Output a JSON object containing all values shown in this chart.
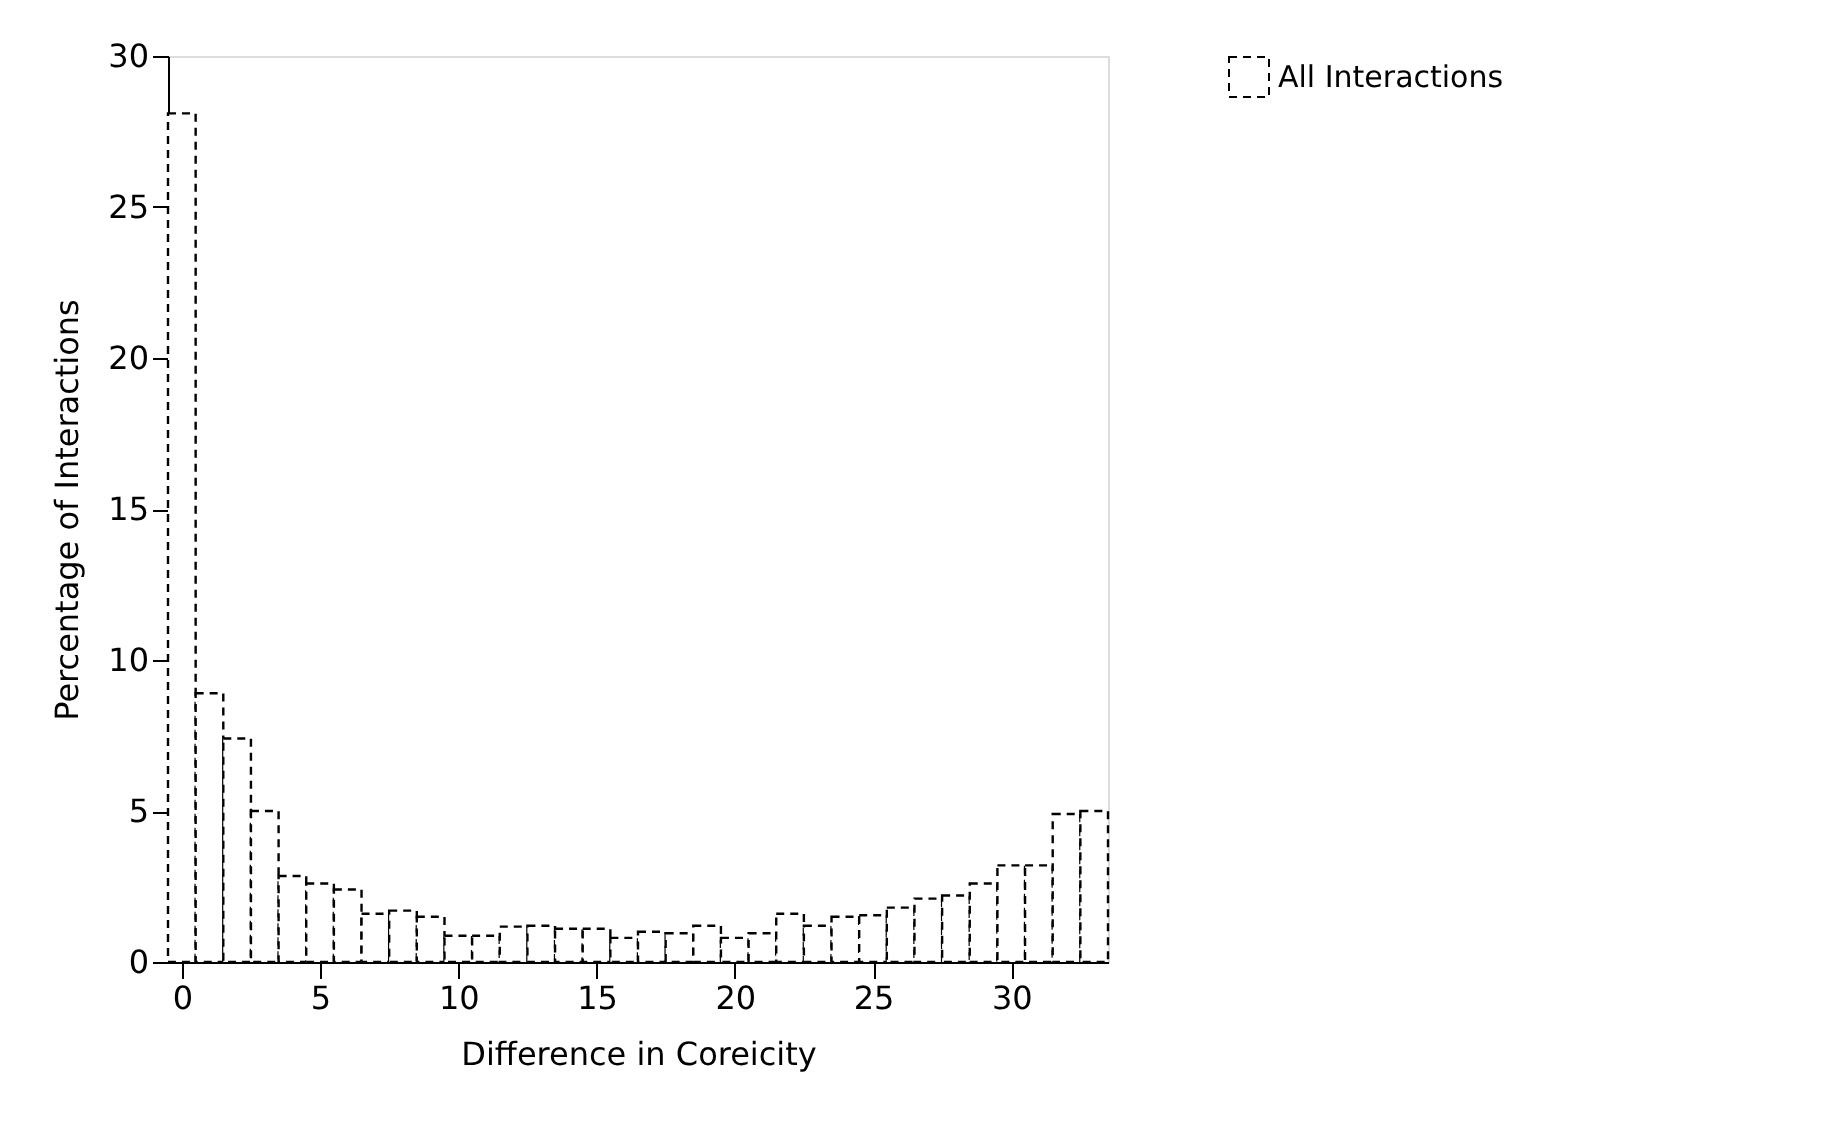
{
  "chart_data": {
    "type": "histogram",
    "xlabel": "Difference in Coreicity",
    "ylabel": "Percentage of Interactions",
    "bins": [
      -0.5,
      0.5,
      1.5,
      2.5,
      3.5,
      4.5,
      5.5,
      6.5,
      7.5,
      8.5,
      9.5,
      10.5,
      11.5,
      12.5,
      13.5,
      14.5,
      15.5,
      16.5,
      17.5,
      18.5,
      19.5,
      20.5,
      21.5,
      22.5,
      23.5,
      24.5,
      25.5,
      26.5,
      27.5,
      28.5,
      29.5,
      30.5,
      31.5,
      32.5,
      33.5
    ],
    "series": [
      {
        "name": "All Interactions",
        "color": "#000000",
        "line_style": "dashed",
        "values": [
          28.1,
          8.9,
          7.4,
          5.0,
          2.85,
          2.6,
          2.4,
          1.6,
          1.7,
          1.5,
          0.87,
          0.87,
          1.17,
          1.2,
          1.1,
          1.1,
          0.8,
          1.0,
          0.95,
          1.2,
          0.8,
          0.95,
          1.6,
          1.2,
          1.5,
          1.55,
          1.8,
          2.1,
          2.2,
          2.6,
          3.2,
          3.2,
          4.9,
          5.0
        ]
      }
    ],
    "xlim": [
      -0.5,
      33.5
    ],
    "xticks": [
      0,
      5,
      10,
      15,
      20,
      25,
      30
    ],
    "ylim": [
      0,
      30
    ],
    "yticks": [
      0,
      5,
      10,
      15,
      20,
      25,
      30
    ],
    "grid": false,
    "legend": "top right"
  }
}
